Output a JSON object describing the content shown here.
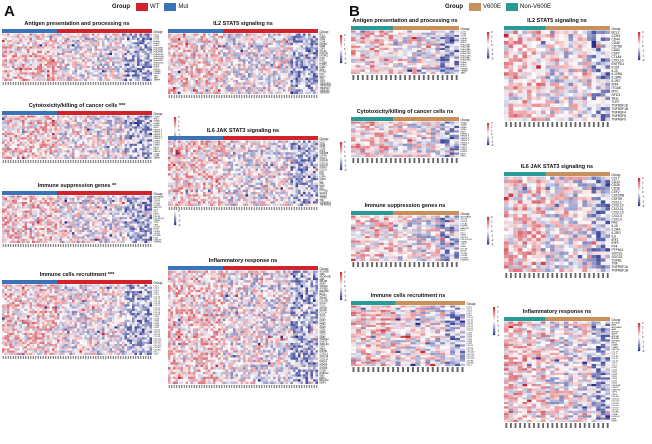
{
  "figure": {
    "panels": [
      {
        "id": "A",
        "letter": "A",
        "legend": {
          "title": "Group",
          "items": [
            {
              "name": "WT",
              "color": "#d2232a"
            },
            {
              "name": "Mut",
              "color": "#3a73b8"
            }
          ]
        }
      },
      {
        "id": "B",
        "letter": "B",
        "legend": {
          "title": "Group",
          "items": [
            {
              "name": "V600E",
              "color": "#c8905a"
            },
            {
              "name": "Non-V600E",
              "color": "#2a9a96"
            }
          ]
        }
      }
    ]
  },
  "chart_data": [
    {
      "panel": "A",
      "type": "heatmap",
      "title": "Antigen presentation and processing",
      "significance": "ns",
      "annotation_label": "Group",
      "groups": [
        {
          "name": "Mut",
          "n": 22
        },
        {
          "name": "WT",
          "n": 38
        }
      ],
      "rows": [
        "CD74",
        "CTSB",
        "CTSS",
        "HLA-A",
        "HLA-B",
        "HLA-C",
        "HLA-DMA",
        "HLA-DMB",
        "HLA-DPA1",
        "HLA-DPB1",
        "HLA-DQA1",
        "HLA-DQB1",
        "HLA-DRA",
        "HLA-DRB1",
        "HLA-E",
        "HLA-F",
        "HLA-G",
        "PSMB8",
        "PSMB9",
        "TAP1",
        "TAP2",
        "TAPBP"
      ],
      "colorbar": {
        "min": -3,
        "max": 3,
        "ticks": [
          3,
          2,
          1,
          0,
          -1,
          -2,
          -3
        ]
      }
    },
    {
      "panel": "A",
      "type": "heatmap",
      "title": "Cytotoxicity/killing of cancer cells",
      "significance": "***",
      "annotation_label": "Group",
      "groups": [
        {
          "name": "Mut",
          "n": 22
        },
        {
          "name": "WT",
          "n": 38
        }
      ],
      "rows": [
        "CTSW",
        "GNLY",
        "GZMA",
        "GZMB",
        "GZMH",
        "IFNG",
        "KIR2DL1",
        "KIR2DL3",
        "KIR2DL4",
        "KIR3DL1",
        "KIR3DL2",
        "KLRB1",
        "KLRD1",
        "KLRK1",
        "NKG7",
        "PRF1",
        "FASLG",
        "CD8A",
        "CD8B",
        "LAMP1"
      ],
      "colorbar": {
        "min": -3,
        "max": 3,
        "ticks": [
          3,
          2,
          1,
          0,
          -1,
          -2,
          -3
        ]
      }
    },
    {
      "panel": "A",
      "type": "heatmap",
      "title": "Immune suppression genes",
      "significance": "**",
      "annotation_label": "Group",
      "groups": [
        {
          "name": "Mut",
          "n": 22
        },
        {
          "name": "WT",
          "n": 38
        }
      ],
      "rows": [
        "ADORA2A",
        "CD274",
        "CD276",
        "CTLA4",
        "FOXP3",
        "HAVCR2",
        "IDO1",
        "IL10",
        "LAG3",
        "PDCD1",
        "PDCD1LG2",
        "TGFB1",
        "TIGIT",
        "VSIR",
        "VTCN1",
        "BTLA",
        "CD160",
        "CD244",
        "IL10RB",
        "KDR",
        "LGALS9",
        "TGFBR1"
      ],
      "colorbar": {
        "min": -3,
        "max": 3,
        "ticks": [
          3,
          2,
          1,
          0,
          -1,
          -2,
          -3
        ]
      }
    },
    {
      "panel": "A",
      "type": "heatmap",
      "title": "Immune cells recruitment",
      "significance": "***",
      "annotation_label": "Group",
      "groups": [
        {
          "name": "Mut",
          "n": 22
        },
        {
          "name": "WT",
          "n": 38
        }
      ],
      "rows": [
        "CCL2",
        "CCL3",
        "CCL4",
        "CCL5",
        "CCL8",
        "CCL13",
        "CCL17",
        "CCL19",
        "CCL20",
        "CCL21",
        "CCL22",
        "CCL24",
        "CCL25",
        "CCL28",
        "CCR1",
        "CCR2",
        "CCR4",
        "CCR5",
        "CCR6",
        "CCR7",
        "CXCL1",
        "CXCL2",
        "CXCL5",
        "CXCL9",
        "CXCL10",
        "CXCL11",
        "CXCL12",
        "CXCL13",
        "CXCR3",
        "CXCR4",
        "XCL1",
        "XCL2"
      ],
      "colorbar": {
        "min": -3,
        "max": 3,
        "ticks": [
          3,
          2,
          1,
          0,
          -1,
          -2,
          -3
        ]
      }
    },
    {
      "panel": "A",
      "type": "heatmap",
      "title": "IL2 STAT5 signaling",
      "significance": "ns",
      "annotation_label": "Group",
      "groups": [
        {
          "name": "Mut",
          "n": 22
        },
        {
          "name": "WT",
          "n": 38
        }
      ],
      "rows": [
        "BCL2",
        "CCR4",
        "CD44",
        "CD48",
        "CD79B",
        "CD83",
        "CSF2",
        "CTLA4",
        "CXCL10",
        "ENTPD1",
        "ICOS",
        "IL10",
        "IL10RA",
        "IL18R1",
        "IL1R2",
        "IRF4",
        "ITGAE",
        "MYC",
        "NFIL3",
        "SELL",
        "TLR7",
        "TNFRSF18",
        "TNFRSF1B",
        "TNFRSF4",
        "TNFRSF8",
        "TNFRSF9"
      ],
      "colorbar": {
        "min": -3,
        "max": 3,
        "ticks": [
          3,
          2,
          1,
          0,
          -1,
          -2,
          -3
        ]
      }
    },
    {
      "panel": "A",
      "type": "heatmap",
      "title": "IL6 JAK STAT3 signaling",
      "significance": "ns",
      "annotation_label": "Group",
      "groups": [
        {
          "name": "Mut",
          "n": 22
        },
        {
          "name": "WT",
          "n": 38
        }
      ],
      "rows": [
        "CCL7",
        "CD14",
        "CD36",
        "CD38",
        "CSF2",
        "CSF2RB",
        "CSF3R",
        "CXCL1",
        "CXCL10",
        "CXCL11",
        "CXCL13",
        "CXCL3",
        "CXCL9",
        "FAS",
        "IL15",
        "IL2RA",
        "IL2RG",
        "IL6",
        "IRF1",
        "IRF9",
        "PF4",
        "PTPN11",
        "SOCS1",
        "SOCS3",
        "TGFB1",
        "TNF",
        "TNFRSF1A",
        "TNFRSF1B"
      ],
      "colorbar": {
        "min": -3,
        "max": 3,
        "ticks": [
          3,
          2,
          1,
          0,
          -1,
          -2,
          -3
        ]
      }
    },
    {
      "panel": "A",
      "type": "heatmap",
      "title": "Inflammatory response",
      "significance": "ns",
      "annotation_label": "Group",
      "groups": [
        {
          "name": "Mut",
          "n": 22
        },
        {
          "name": "WT",
          "n": 38
        }
      ],
      "rows": [
        "ACVR1B",
        "ADM",
        "ADORA2B",
        "AHR",
        "APLNR",
        "AQP9",
        "ATP2A2",
        "ATP2B1",
        "BDKRB1",
        "BST2",
        "C3AR1",
        "C5AR1",
        "CALCRL",
        "CCL17",
        "CCL2",
        "CCL20",
        "CCL22",
        "CCL24",
        "CCL5",
        "CCL7",
        "CCR7",
        "CD14",
        "CD40",
        "CD48",
        "CD55",
        "CD69",
        "CD70",
        "CD82",
        "CDKN1A",
        "CHST2",
        "CMKLR1",
        "CSF1",
        "CSF3",
        "CSF3R",
        "CX3CL1",
        "CXCL10",
        "CXCL11",
        "CXCL6",
        "CXCL8",
        "CXCL9",
        "CXCR6",
        "CYBB",
        "DCBLD2",
        "EBI3",
        "EDN1",
        "EIF2AK2",
        "EMP3"
      ],
      "colorbar": {
        "min": -3,
        "max": 3,
        "ticks": [
          3,
          2,
          1,
          0,
          -1,
          -2,
          -3
        ]
      }
    },
    {
      "panel": "B",
      "type": "heatmap",
      "title": "Antigen presentation and processing",
      "significance": "ns",
      "annotation_label": "Group",
      "groups": [
        {
          "name": "Non-V600E",
          "n": 9
        },
        {
          "name": "V600E",
          "n": 14
        }
      ],
      "rows": [
        "CD74",
        "CTSB",
        "CTSS",
        "HLA-A",
        "HLA-B",
        "HLA-C",
        "HLA-DMA",
        "HLA-DMB",
        "HLA-DPA1",
        "HLA-DPB1",
        "HLA-DQA1",
        "HLA-DQB1",
        "HLA-DRA",
        "HLA-DRB1",
        "HLA-E",
        "HLA-F",
        "HLA-G",
        "PSMB8",
        "PSMB9",
        "TAP1"
      ],
      "colorbar": {
        "min": -3,
        "max": 3,
        "ticks": [
          3,
          2,
          1,
          0,
          -1,
          -2,
          -3
        ]
      }
    },
    {
      "panel": "B",
      "type": "heatmap",
      "title": "Cytotoxicity/killing of cancer cells",
      "significance": "ns",
      "annotation_label": "Group",
      "groups": [
        {
          "name": "Non-V600E",
          "n": 9
        },
        {
          "name": "V600E",
          "n": 14
        }
      ],
      "rows": [
        "GZMA",
        "GZMB",
        "GZMH",
        "GZMK",
        "IFNG",
        "KIR2DL1",
        "KIR2DL3",
        "KIR2DL4",
        "KIR3DL1",
        "KIR3DL2",
        "KLRB1",
        "KLRC1",
        "KLRD1",
        "KLRK1",
        "NKG7",
        "PRF1"
      ],
      "colorbar": {
        "min": -3,
        "max": 3,
        "ticks": [
          3,
          2,
          1,
          0,
          -1,
          -2,
          -3
        ]
      }
    },
    {
      "panel": "B",
      "type": "heatmap",
      "title": "Immune suppression genes",
      "significance": "ns",
      "annotation_label": "Group",
      "groups": [
        {
          "name": "Non-V600E",
          "n": 9
        },
        {
          "name": "V600E",
          "n": 14
        }
      ],
      "rows": [
        "ADORA2A",
        "CD274",
        "CD276",
        "CTLA4",
        "FOXP3",
        "HAVCR2",
        "IDO1",
        "IL10",
        "LAG3",
        "PDCD1",
        "PDCD1LG2",
        "TGFB1",
        "TIGIT",
        "VSIR",
        "VTCN1",
        "BTLA",
        "CD160",
        "CD244",
        "IL10RB",
        "LGALS9"
      ],
      "colorbar": {
        "min": -3,
        "max": 3,
        "ticks": [
          3,
          2,
          1,
          0,
          -1,
          -2,
          -3
        ]
      }
    },
    {
      "panel": "B",
      "type": "heatmap",
      "title": "Immune cells recruitment",
      "significance": "ns",
      "annotation_label": "Group",
      "groups": [
        {
          "name": "Non-V600E",
          "n": 9
        },
        {
          "name": "V600E",
          "n": 14
        }
      ],
      "rows": [
        "CCL2",
        "CCL3",
        "CCL4",
        "CCL5",
        "CCL8",
        "CCL13",
        "CCL17",
        "CCL19",
        "CCL20",
        "CCL21",
        "CCL22",
        "CCL24",
        "CCR1",
        "CCR2",
        "CCR4",
        "CCR5",
        "CCR6",
        "CCR7",
        "CXCL1",
        "CXCL2",
        "CXCL9",
        "CXCL10",
        "CXCL11",
        "CXCL12",
        "CXCL13",
        "CXCR3",
        "CXCR4",
        "XCL1"
      ],
      "colorbar": {
        "min": -3,
        "max": 3,
        "ticks": [
          3,
          2,
          1,
          0,
          -1,
          -2,
          -3
        ]
      }
    },
    {
      "panel": "B",
      "type": "heatmap",
      "title": "IL2 STAT5 signaling",
      "significance": "ns",
      "annotation_label": "Group",
      "groups": [
        {
          "name": "Non-V600E",
          "n": 9
        },
        {
          "name": "V600E",
          "n": 14
        }
      ],
      "rows": [
        "BCL2",
        "CCR4",
        "CD44",
        "CD48",
        "CD79B",
        "CD83",
        "CSF2",
        "CTLA4",
        "CXCL10",
        "ENTPD1",
        "ICOS",
        "IL10",
        "IL10RA",
        "IL18R1",
        "IL1R2",
        "IRF4",
        "ITGAE",
        "MYC",
        "NFIL3",
        "SELL",
        "TLR7",
        "TNFRSF18",
        "TNFRSF1B",
        "TNFRSF4",
        "TNFRSF8",
        "TNFRSF9"
      ],
      "colorbar": {
        "min": -3,
        "max": 3,
        "ticks": [
          3,
          2,
          1,
          0,
          -1,
          -2,
          -3
        ]
      }
    },
    {
      "panel": "B",
      "type": "heatmap",
      "title": "IL6 JAK STAT3 signaling",
      "significance": "ns",
      "annotation_label": "Group",
      "groups": [
        {
          "name": "Non-V600E",
          "n": 9
        },
        {
          "name": "V600E",
          "n": 14
        }
      ],
      "rows": [
        "CCL7",
        "CD14",
        "CD36",
        "CD38",
        "CSF2",
        "CSF2RB",
        "CSF3R",
        "CXCL1",
        "CXCL10",
        "CXCL11",
        "CXCL13",
        "CXCL3",
        "CXCL9",
        "FAS",
        "IL15",
        "IL2RA",
        "IL2RG",
        "IL6",
        "IRF1",
        "IRF9",
        "PF4",
        "PTPN11",
        "SOCS1",
        "SOCS3",
        "TGFB1",
        "TNF",
        "TNFRSF1A",
        "TNFRSF1B"
      ],
      "colorbar": {
        "min": -3,
        "max": 3,
        "ticks": [
          3,
          2,
          1,
          0,
          -1,
          -2,
          -3
        ]
      }
    },
    {
      "panel": "B",
      "type": "heatmap",
      "title": "Inflammatory response",
      "significance": "ns",
      "annotation_label": "Group",
      "groups": [
        {
          "name": "Non-V600E",
          "n": 9
        },
        {
          "name": "V600E",
          "n": 14
        }
      ],
      "rows": [
        "ACVR1B",
        "ADM",
        "ADORA2B",
        "AHR",
        "APLNR",
        "AQP9",
        "ATP2A2",
        "ATP2B1",
        "BDKRB1",
        "BST2",
        "C3AR1",
        "C5AR1",
        "CALCRL",
        "CCL17",
        "CCL2",
        "CCL20",
        "CCL22",
        "CCL24",
        "CCL5",
        "CCL7",
        "CCR7",
        "CD14",
        "CD40",
        "CD48",
        "CD55",
        "CD69",
        "CD70",
        "CD82",
        "CDKN1A",
        "CHST2",
        "CMKLR1",
        "CSF1",
        "CSF3",
        "CSF3R",
        "CX3CL1",
        "CXCL10",
        "CXCL11",
        "CXCL6",
        "CXCL8",
        "CXCL9",
        "CXCR6",
        "CYBB",
        "DCBLD2",
        "EBI3",
        "EDN1"
      ],
      "colorbar": {
        "min": -3,
        "max": 3,
        "ticks": [
          3,
          2,
          1,
          0,
          -1,
          -2,
          -3
        ]
      }
    }
  ]
}
